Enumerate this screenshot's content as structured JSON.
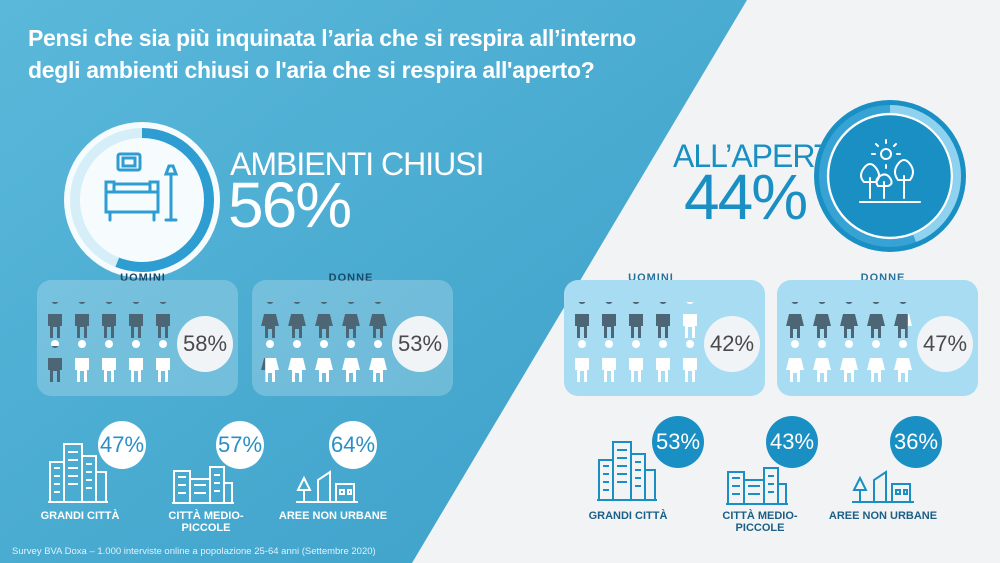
{
  "title": {
    "line1": "Pensi che sia più inquinata l’aria che si respira all’interno",
    "line2": "degli ambienti chiusi o l'aria che si respira all'aperto?"
  },
  "left": {
    "label": "AMBIENTI CHIUSI",
    "value": "56%",
    "progress": 0.56,
    "uomini": {
      "label": "UOMINI",
      "value": "58%"
    },
    "donne": {
      "label": "DONNE",
      "value": "53%"
    },
    "areas": [
      {
        "value": "47%",
        "label": "GRANDI CITTÀ"
      },
      {
        "value": "57%",
        "label": "CITTÀ MEDIO-PICCOLE"
      },
      {
        "value": "64%",
        "label": "AREE NON URBANE"
      }
    ]
  },
  "right": {
    "label": "ALL’APERTO",
    "value": "44%",
    "progress": 0.44,
    "uomini": {
      "label": "UOMINI",
      "value": "42%"
    },
    "donne": {
      "label": "DONNE",
      "value": "47%"
    },
    "areas": [
      {
        "value": "53%",
        "label": "GRANDI CITTÀ"
      },
      {
        "value": "43%",
        "label": "CITTÀ MEDIO-PICCOLE"
      },
      {
        "value": "36%",
        "label": "AREE NON URBANE"
      }
    ]
  },
  "footer": "Survey BVA Doxa – 1.000 interviste online a popolazione 25-64 anni (Settembre 2020)",
  "colors": {
    "left_bg": "#3fa9cf",
    "right_bg": "#f2f3f5",
    "accent": "#1a8fc4",
    "dark_person": "#4d6675"
  }
}
